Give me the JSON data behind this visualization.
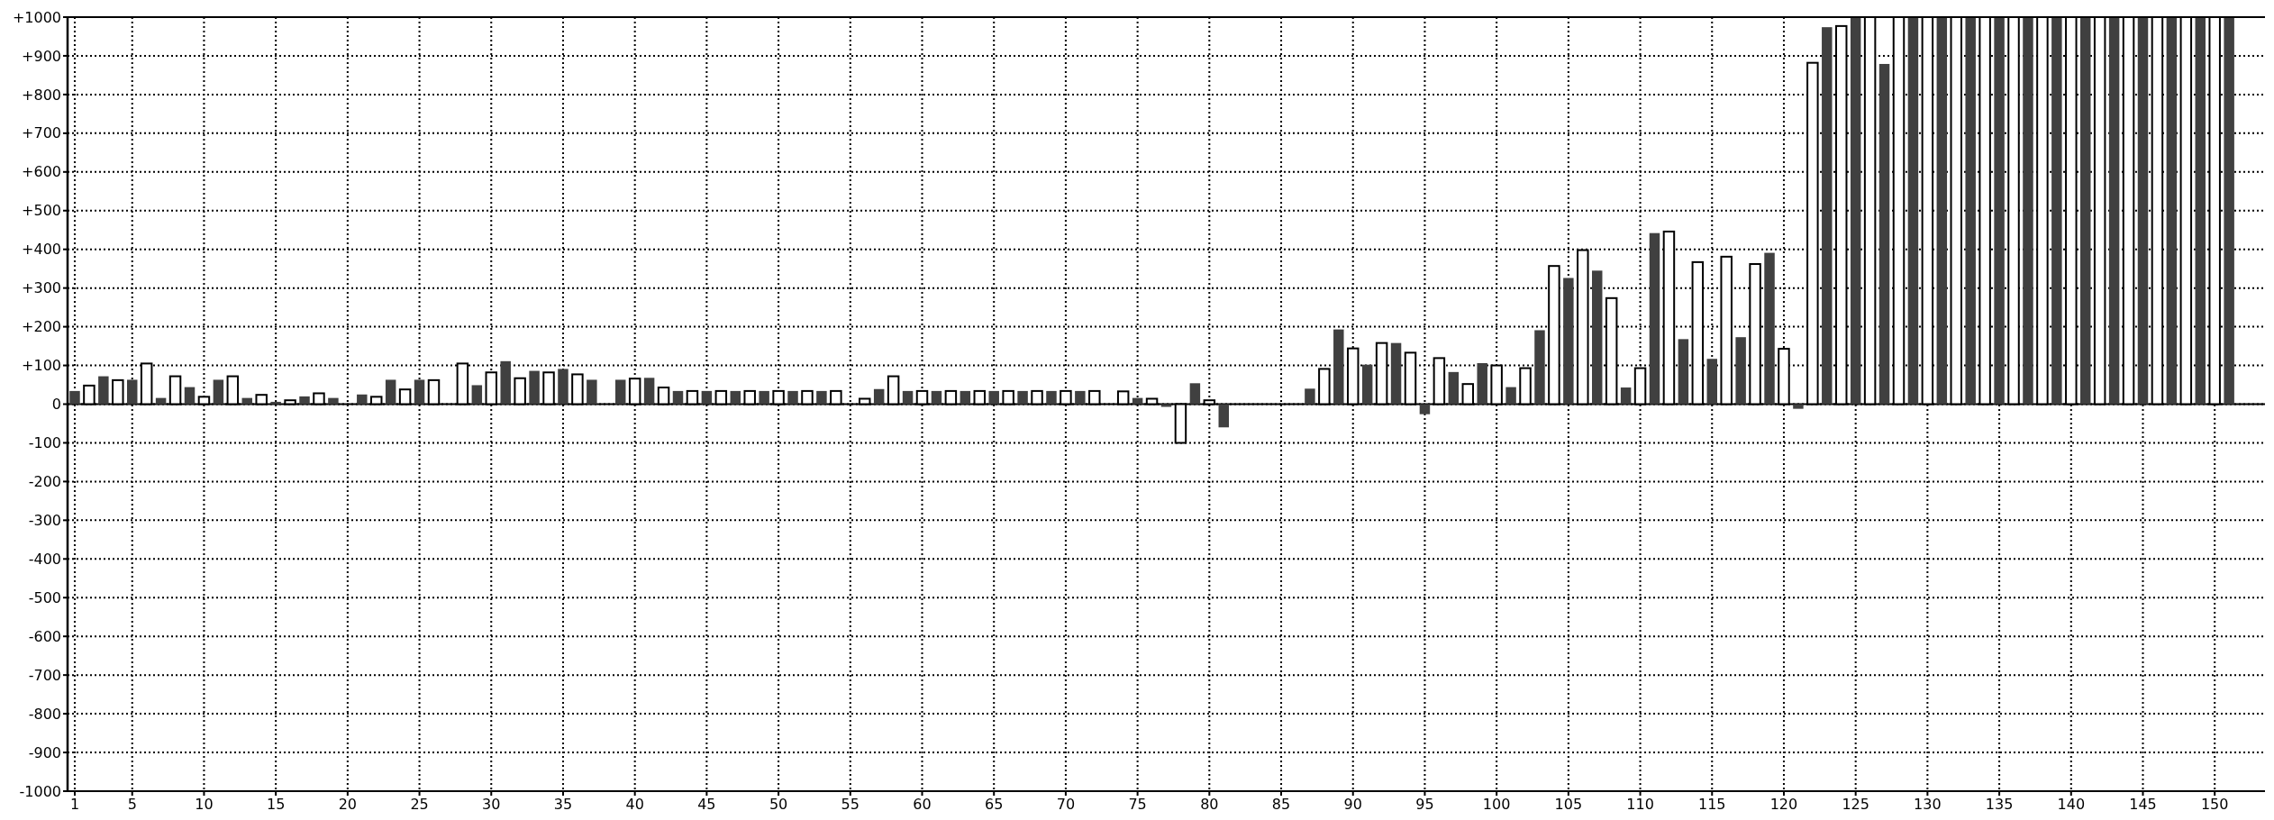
{
  "chart_data": {
    "type": "bar",
    "xlim": [
      0.5,
      153.5
    ],
    "xticks": [
      1,
      5,
      10,
      15,
      20,
      25,
      30,
      35,
      40,
      45,
      50,
      55,
      60,
      65,
      70,
      75,
      80,
      85,
      90,
      95,
      100,
      105,
      110,
      115,
      120,
      125,
      130,
      135,
      140,
      145,
      150
    ],
    "ylim": [
      -1000,
      1000
    ],
    "yticks": [
      -1000,
      -900,
      -800,
      -700,
      -600,
      -500,
      -400,
      -300,
      -200,
      -100,
      0,
      {
        "value": 100,
        "label": "+100"
      },
      {
        "value": 200,
        "label": "+200"
      },
      {
        "value": 300,
        "label": "+300"
      },
      {
        "value": 400,
        "label": "+400"
      },
      {
        "value": 500,
        "label": "+500"
      },
      {
        "value": 600,
        "label": "+600"
      },
      {
        "value": 700,
        "label": "+700"
      },
      {
        "value": 800,
        "label": "+800"
      },
      {
        "value": 900,
        "label": "+900"
      },
      {
        "value": 1000,
        "label": "+1000"
      }
    ],
    "grid": true,
    "series": [
      {
        "color": "#404040",
        "x": [
          1,
          3,
          5,
          7,
          9,
          11,
          13,
          15,
          17,
          19,
          21,
          23,
          25,
          27,
          29,
          31,
          33,
          35,
          37,
          39,
          41,
          43,
          45,
          47,
          49,
          51,
          53,
          55,
          57,
          59,
          61,
          63,
          65,
          67,
          69,
          71,
          73,
          75,
          77,
          79,
          81,
          83,
          85,
          87,
          89,
          91,
          93,
          95,
          97,
          99,
          101,
          103,
          105,
          107,
          109,
          111,
          113,
          115,
          117,
          119,
          121,
          123,
          125,
          127,
          129,
          131,
          133,
          135,
          137,
          139,
          141,
          143,
          145,
          147,
          149,
          151
        ],
        "values": [
          34,
          72,
          63,
          16,
          44,
          63,
          16,
          6,
          20,
          16,
          25,
          63,
          63,
          null,
          49,
          111,
          86,
          91,
          63,
          63,
          68,
          34,
          34,
          34,
          34,
          34,
          34,
          null,
          39,
          34,
          34,
          34,
          34,
          34,
          34,
          34,
          null,
          16,
          -7,
          54,
          -60,
          null,
          null,
          40,
          193,
          102,
          158,
          -26,
          83,
          106,
          44,
          191,
          326,
          345,
          43,
          442,
          168,
          117,
          173,
          391,
          -12,
          974,
          1000,
          879,
          1000,
          1000,
          1000,
          1000,
          1000,
          1000,
          1000,
          1000,
          1000,
          1000,
          1000,
          1000
        ]
      },
      {
        "color": "#ffffff",
        "x": [
          2,
          4,
          6,
          8,
          10,
          12,
          14,
          16,
          18,
          20,
          22,
          24,
          26,
          28,
          30,
          32,
          34,
          36,
          38,
          40,
          42,
          44,
          46,
          48,
          50,
          52,
          54,
          56,
          58,
          60,
          62,
          64,
          66,
          68,
          70,
          72,
          74,
          76,
          78,
          80,
          82,
          84,
          86,
          88,
          90,
          92,
          94,
          96,
          98,
          100,
          102,
          104,
          106,
          108,
          110,
          112,
          114,
          116,
          118,
          120,
          122,
          124,
          126,
          128,
          130,
          132,
          134,
          136,
          138,
          140,
          142,
          144,
          146,
          148,
          150
        ],
        "values": [
          48,
          62,
          105,
          72,
          19,
          72,
          24,
          10,
          28,
          null,
          19,
          38,
          62,
          105,
          82,
          67,
          82,
          77,
          null,
          66,
          43,
          34,
          34,
          34,
          34,
          34,
          34,
          14,
          72,
          34,
          34,
          34,
          34,
          34,
          34,
          34,
          33,
          14,
          -100,
          10,
          null,
          null,
          null,
          91,
          144,
          158,
          133,
          119,
          52,
          100,
          93,
          357,
          398,
          274,
          93,
          446,
          367,
          381,
          362,
          143,
          882,
          977,
          1000,
          1000,
          1000,
          1000,
          1000,
          1000,
          1000,
          1000,
          1000,
          1000,
          1000,
          1000,
          1000
        ]
      }
    ]
  }
}
